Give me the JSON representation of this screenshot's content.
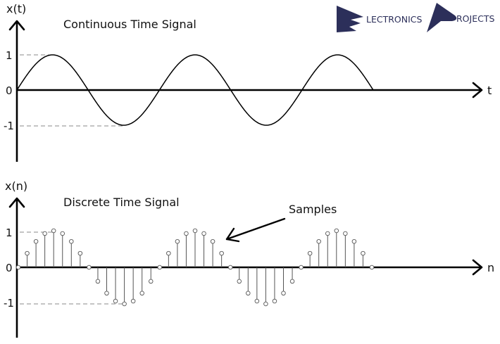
{
  "logo": {
    "word1": "LECTRONICS",
    "word2": "ROJECTS",
    "color": "#2c2f5a"
  },
  "continuous": {
    "title": "Continuous Time Signal",
    "y_axis_label": "x(t)",
    "x_axis_label": "t",
    "ticks": {
      "pos": "1",
      "zero": "0",
      "neg": "-1"
    },
    "amplitude": 1,
    "periods": 2.5
  },
  "discrete": {
    "title": "Discrete Time Signal",
    "y_axis_label": "x(n)",
    "x_axis_label": "n",
    "ticks": {
      "pos": "1",
      "zero": "0",
      "neg": "-1"
    },
    "amplitude": 1,
    "periods": 2.5,
    "sample_count": 41,
    "annotation": "Samples"
  },
  "colors": {
    "axis": "#000000",
    "wave": "#000000",
    "stem": "#555555",
    "guide": "#8a8a8a"
  }
}
